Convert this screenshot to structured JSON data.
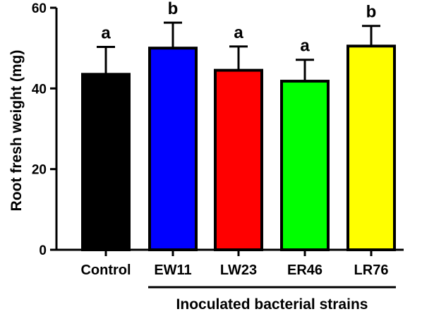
{
  "chart_data": {
    "type": "bar",
    "title": "",
    "ylabel": "Root fresh weight (mg)",
    "xlabel": "",
    "ylim": [
      0,
      60
    ],
    "yticks": [
      0,
      20,
      40,
      60
    ],
    "categories": [
      "Control",
      "EW11",
      "LW23",
      "ER46",
      "LR76"
    ],
    "values": [
      43.5,
      50.0,
      44.5,
      41.8,
      50.5
    ],
    "errors": [
      6.8,
      6.3,
      5.9,
      5.3,
      5.0
    ],
    "colors": [
      "#000000",
      "#0000ff",
      "#ff0000",
      "#00ff00",
      "#ffff00"
    ],
    "significance": [
      "a",
      "b",
      "a",
      "a",
      "b"
    ],
    "group_label": "Inoculated bacterial strains",
    "group_categories": [
      "EW11",
      "LW23",
      "ER46",
      "LR76"
    ],
    "grid": false,
    "legend": "none"
  }
}
